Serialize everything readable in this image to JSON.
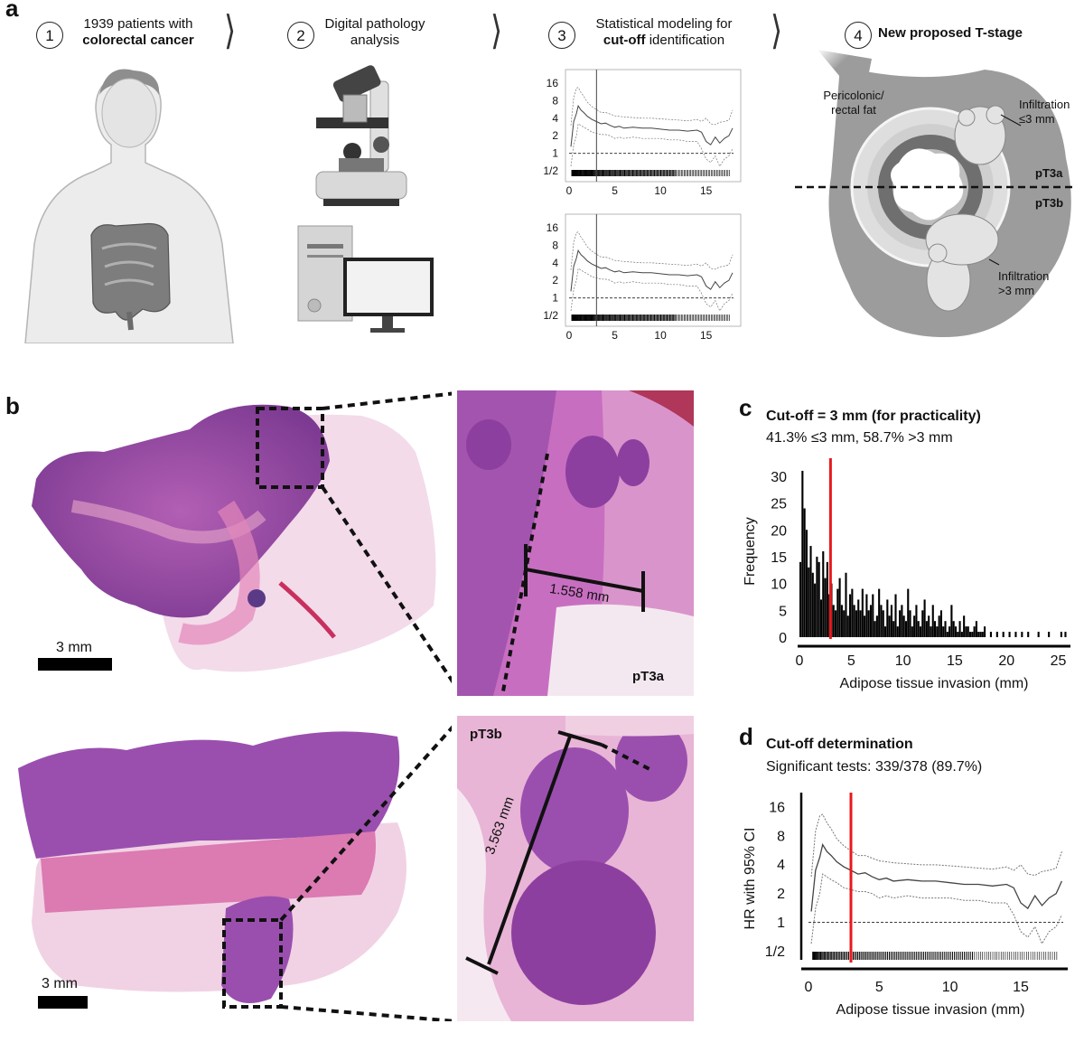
{
  "panel_a": {
    "letter": "a",
    "steps": [
      {
        "num": "1",
        "line1": "1939 patients with",
        "line2": "colorectal cancer"
      },
      {
        "num": "2",
        "line1": "Digital pathology",
        "line2": "analysis"
      },
      {
        "num": "3",
        "line1": "Statistical modeling for",
        "line2_bold": "cut-off",
        "line2_rest": " identification"
      },
      {
        "num": "4",
        "line1_bold": "New proposed T-stage"
      }
    ],
    "mini_y_ticks": [
      "16",
      "8",
      "4",
      "2",
      "1",
      "1/2"
    ],
    "mini_x_ticks": [
      "0",
      "5",
      "10",
      "15"
    ],
    "tstage_labels": {
      "fat": "Pericolonic/\nrectal fat",
      "infil_small": "Infiltration\n≤3 mm",
      "infil_large": "Infiltration\n>3 mm",
      "pt3a": "pT3a",
      "pt3b": "pT3b"
    }
  },
  "panel_b": {
    "letter": "b",
    "scale_top": "3 mm",
    "scale_bottom": "3 mm",
    "measure_top": "1.558 mm",
    "measure_bottom": "3.563 mm",
    "label_top": "pT3a",
    "label_bottom": "pT3b"
  },
  "panel_c": {
    "letter": "c",
    "title": "Cut-off = 3 mm (for practicality)",
    "subtitle": "41.3% ≤3 mm, 58.7% >3 mm",
    "cutoff_color": "#e8191e"
  },
  "panel_d": {
    "letter": "d",
    "title": "Cut-off determination",
    "subtitle": "Significant tests: 339/378 (89.7%)",
    "cutoff_color": "#e8191e"
  },
  "chart_data": [
    {
      "type": "bar",
      "id": "histogram-c",
      "xlabel": "Adipose tissue invasion (mm)",
      "ylabel": "Frequency",
      "xlim": [
        0,
        26
      ],
      "ylim": [
        0,
        32
      ],
      "x_ticks": [
        0,
        5,
        10,
        15,
        20,
        25
      ],
      "y_ticks": [
        0,
        5,
        10,
        15,
        20,
        25,
        30
      ],
      "cutoff": 3,
      "bin_width": 0.2,
      "x": [
        0.1,
        0.3,
        0.5,
        0.7,
        0.9,
        1.1,
        1.3,
        1.5,
        1.7,
        1.9,
        2.1,
        2.3,
        2.5,
        2.7,
        2.9,
        3.1,
        3.3,
        3.5,
        3.7,
        3.9,
        4.1,
        4.3,
        4.5,
        4.7,
        4.9,
        5.1,
        5.3,
        5.5,
        5.7,
        5.9,
        6.1,
        6.3,
        6.5,
        6.7,
        6.9,
        7.1,
        7.3,
        7.5,
        7.7,
        7.9,
        8.1,
        8.3,
        8.5,
        8.7,
        8.9,
        9.1,
        9.3,
        9.5,
        9.7,
        9.9,
        10.1,
        10.3,
        10.5,
        10.7,
        10.9,
        11.1,
        11.3,
        11.5,
        11.7,
        11.9,
        12.1,
        12.3,
        12.5,
        12.7,
        12.9,
        13.1,
        13.3,
        13.5,
        13.7,
        13.9,
        14.1,
        14.3,
        14.5,
        14.7,
        14.9,
        15.1,
        15.3,
        15.5,
        15.7,
        15.9,
        16.1,
        16.3,
        16.5,
        16.7,
        16.9,
        17.1,
        17.3,
        17.5,
        17.7,
        17.9,
        18.5,
        19.1,
        19.7,
        20.3,
        20.9,
        21.5,
        22.1,
        23.1,
        24.1,
        25.3,
        25.7
      ],
      "values": [
        14,
        31,
        24,
        20,
        13,
        17,
        12,
        10,
        15,
        14,
        7,
        16,
        11,
        14,
        8,
        10,
        6,
        5,
        9,
        11,
        6,
        5,
        12,
        4,
        8,
        9,
        6,
        5,
        7,
        5,
        9,
        4,
        8,
        5,
        6,
        8,
        3,
        4,
        9,
        6,
        5,
        2,
        7,
        4,
        6,
        3,
        8,
        2,
        5,
        6,
        4,
        3,
        9,
        5,
        2,
        4,
        6,
        3,
        2,
        5,
        7,
        3,
        4,
        2,
        6,
        3,
        2,
        4,
        5,
        2,
        3,
        1,
        2,
        6,
        3,
        2,
        1,
        3,
        1,
        4,
        2,
        2,
        1,
        1,
        2,
        3,
        1,
        1,
        1,
        2,
        1,
        1,
        1,
        1,
        1,
        1,
        1,
        1,
        1,
        1,
        1
      ]
    },
    {
      "type": "line",
      "id": "hr-curve-d",
      "xlabel": "Adipose tissue invasion (mm)",
      "ylabel": "HR with 95% CI",
      "xlim": [
        0,
        18
      ],
      "log_y": true,
      "y_ticks": [
        "16",
        "8",
        "4",
        "2",
        "1",
        "1/2"
      ],
      "x_ticks": [
        0,
        5,
        10,
        15
      ],
      "cutoff": 3,
      "x": [
        0.2,
        0.5,
        0.8,
        1.0,
        1.3,
        1.6,
        2.0,
        2.5,
        3.0,
        3.5,
        4.0,
        4.5,
        5.0,
        5.5,
        6.0,
        7.0,
        8.0,
        9.0,
        10.0,
        11.0,
        12.0,
        13.0,
        14.0,
        14.5,
        15.0,
        15.5,
        16.0,
        16.5,
        17.0,
        17.5,
        17.9
      ],
      "series": [
        {
          "values": [
            1.3,
            3.5,
            4.8,
            6.5,
            5.5,
            5.0,
            4.3,
            3.8,
            3.5,
            3.2,
            3.3,
            3.0,
            2.8,
            2.9,
            2.7,
            2.8,
            2.7,
            2.7,
            2.6,
            2.5,
            2.5,
            2.4,
            2.5,
            2.3,
            1.6,
            1.4,
            1.9,
            1.5,
            1.8,
            2.0,
            2.7
          ]
        },
        {
          "values": [
            3.0,
            9.0,
            13.0,
            13.5,
            11.0,
            9.5,
            7.5,
            6.3,
            5.6,
            5.0,
            5.0,
            4.7,
            4.4,
            4.3,
            4.2,
            4.1,
            4.0,
            4.0,
            3.9,
            3.8,
            3.7,
            3.6,
            3.8,
            3.5,
            4.0,
            3.2,
            3.1,
            3.4,
            3.5,
            3.7,
            5.5
          ]
        },
        {
          "values": [
            0.6,
            1.4,
            2.0,
            3.2,
            3.0,
            2.8,
            2.6,
            2.3,
            2.2,
            2.1,
            2.1,
            2.0,
            1.8,
            1.9,
            1.8,
            1.9,
            1.8,
            1.8,
            1.8,
            1.7,
            1.7,
            1.6,
            1.6,
            1.2,
            0.8,
            0.7,
            0.9,
            0.6,
            0.8,
            0.9,
            1.2
          ]
        }
      ]
    }
  ]
}
